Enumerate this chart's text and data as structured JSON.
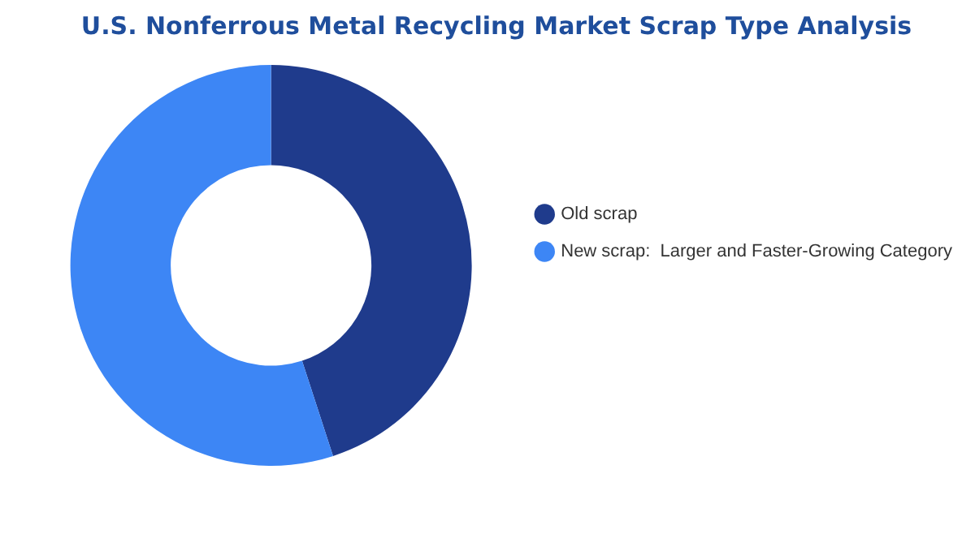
{
  "chart_data": {
    "type": "donut",
    "title": "U.S. Nonferrous Metal Recycling Market Scrap Type Analysis",
    "categories": [
      "Old scrap",
      "New scrap:  Larger and Faster-Growing Category"
    ],
    "values": [
      45,
      55
    ],
    "colors": [
      "#1f3b8c",
      "#3d86f5"
    ],
    "legend": "right"
  }
}
